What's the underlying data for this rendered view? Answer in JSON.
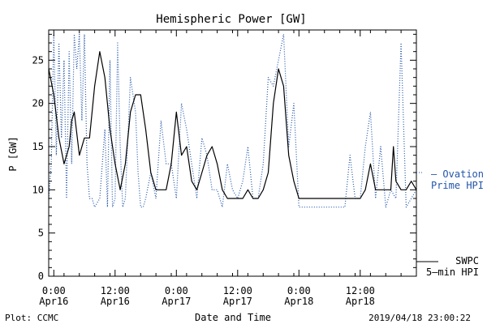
{
  "chart_data": {
    "type": "line",
    "title": "Hemispheric Power [GW]",
    "xlabel": "Date and Time",
    "ylabel": "P [GW]",
    "ylim": [
      0,
      28.5
    ],
    "xlim": [
      "2019-04-15T23:00",
      "2019-04-18T23:00"
    ],
    "y_ticks": [
      "0",
      "5",
      "10",
      "15",
      "20",
      "25"
    ],
    "x_ticks": [
      {
        "time": "2019-04-16T00:00",
        "line1": "0:00",
        "line2": "Apr16"
      },
      {
        "time": "2019-04-16T12:00",
        "line1": "12:00",
        "line2": "Apr16"
      },
      {
        "time": "2019-04-17T00:00",
        "line1": "0:00",
        "line2": "Apr17"
      },
      {
        "time": "2019-04-17T12:00",
        "line1": "12:00",
        "line2": "Apr17"
      },
      {
        "time": "2019-04-18T00:00",
        "line1": "0:00",
        "line2": "Apr18"
      },
      {
        "time": "2019-04-18T12:00",
        "line1": "12:00",
        "line2": "Apr18"
      }
    ],
    "legend_placement": "right",
    "series": [
      {
        "name": "SWPC 5-min HPI",
        "color": "#000000",
        "style": "solid",
        "x": [
          "2019-04-15T23:00",
          "2019-04-16T00:00",
          "2019-04-16T01:00",
          "2019-04-16T02:00",
          "2019-04-16T03:00",
          "2019-04-16T03:30",
          "2019-04-16T04:00",
          "2019-04-16T05:00",
          "2019-04-16T06:00",
          "2019-04-16T07:00",
          "2019-04-16T08:00",
          "2019-04-16T09:00",
          "2019-04-16T10:00",
          "2019-04-16T11:00",
          "2019-04-16T12:00",
          "2019-04-16T13:00",
          "2019-04-16T14:00",
          "2019-04-16T15:00",
          "2019-04-16T16:00",
          "2019-04-16T17:00",
          "2019-04-16T18:00",
          "2019-04-16T19:00",
          "2019-04-16T20:00",
          "2019-04-16T21:00",
          "2019-04-16T22:00",
          "2019-04-16T23:00",
          "2019-04-17T00:00",
          "2019-04-17T01:00",
          "2019-04-17T02:00",
          "2019-04-17T03:00",
          "2019-04-17T04:00",
          "2019-04-17T05:00",
          "2019-04-17T06:00",
          "2019-04-17T07:00",
          "2019-04-17T08:00",
          "2019-04-17T09:00",
          "2019-04-17T10:00",
          "2019-04-17T11:00",
          "2019-04-17T12:00",
          "2019-04-17T13:00",
          "2019-04-17T14:00",
          "2019-04-17T15:00",
          "2019-04-17T16:00",
          "2019-04-17T17:00",
          "2019-04-17T18:00",
          "2019-04-17T19:00",
          "2019-04-17T20:00",
          "2019-04-17T21:00",
          "2019-04-17T22:00",
          "2019-04-17T23:00",
          "2019-04-18T00:00",
          "2019-04-18T02:00",
          "2019-04-18T04:00",
          "2019-04-18T06:00",
          "2019-04-18T08:00",
          "2019-04-18T10:00",
          "2019-04-18T11:00",
          "2019-04-18T12:00",
          "2019-04-18T13:00",
          "2019-04-18T14:00",
          "2019-04-18T15:00",
          "2019-04-18T16:00",
          "2019-04-18T17:00",
          "2019-04-18T18:00",
          "2019-04-18T18:30",
          "2019-04-18T19:00",
          "2019-04-18T20:00",
          "2019-04-18T21:00",
          "2019-04-18T22:00",
          "2019-04-18T23:00"
        ],
        "y": [
          24,
          21,
          16,
          13,
          15,
          18,
          19,
          14,
          16,
          16,
          22,
          26,
          23,
          17,
          13,
          10,
          13,
          19,
          21,
          21,
          17,
          12,
          10,
          10,
          10,
          13,
          19,
          14,
          15,
          11,
          10,
          12,
          14,
          15,
          13,
          10,
          9,
          9,
          9,
          9,
          10,
          9,
          9,
          10,
          12,
          20,
          24,
          22,
          14,
          11,
          9,
          9,
          9,
          9,
          9,
          9,
          9,
          9,
          10,
          13,
          10,
          10,
          10,
          10,
          15,
          11,
          10,
          10,
          11,
          10
        ]
      },
      {
        "name": "Ovation Prime HPI",
        "color": "#2255aa",
        "style": "dotted",
        "x": [
          "2019-04-15T23:00",
          "2019-04-15T23:30",
          "2019-04-16T00:00",
          "2019-04-16T00:30",
          "2019-04-16T01:00",
          "2019-04-16T01:30",
          "2019-04-16T02:00",
          "2019-04-16T02:30",
          "2019-04-16T03:00",
          "2019-04-16T03:30",
          "2019-04-16T04:00",
          "2019-04-16T04:30",
          "2019-04-16T05:00",
          "2019-04-16T05:30",
          "2019-04-16T06:00",
          "2019-04-16T06:30",
          "2019-04-16T07:00",
          "2019-04-16T07:30",
          "2019-04-16T08:00",
          "2019-04-16T09:00",
          "2019-04-16T10:00",
          "2019-04-16T10:30",
          "2019-04-16T11:00",
          "2019-04-16T11:30",
          "2019-04-16T12:00",
          "2019-04-16T12:30",
          "2019-04-16T13:00",
          "2019-04-16T13:30",
          "2019-04-16T14:00",
          "2019-04-16T15:00",
          "2019-04-16T16:00",
          "2019-04-16T16:30",
          "2019-04-16T17:00",
          "2019-04-16T17:30",
          "2019-04-16T18:00",
          "2019-04-16T19:00",
          "2019-04-16T20:00",
          "2019-04-16T21:00",
          "2019-04-16T22:00",
          "2019-04-16T23:00",
          "2019-04-17T00:00",
          "2019-04-17T01:00",
          "2019-04-17T02:00",
          "2019-04-17T03:00",
          "2019-04-17T04:00",
          "2019-04-17T05:00",
          "2019-04-17T06:00",
          "2019-04-17T07:00",
          "2019-04-17T08:00",
          "2019-04-17T09:00",
          "2019-04-17T10:00",
          "2019-04-17T11:00",
          "2019-04-17T12:00",
          "2019-04-17T13:00",
          "2019-04-17T14:00",
          "2019-04-17T15:00",
          "2019-04-17T16:00",
          "2019-04-17T17:00",
          "2019-04-17T18:00",
          "2019-04-17T19:00",
          "2019-04-17T20:00",
          "2019-04-17T21:00",
          "2019-04-17T22:00",
          "2019-04-17T23:00",
          "2019-04-18T00:00",
          "2019-04-18T02:00",
          "2019-04-18T04:00",
          "2019-04-18T06:00",
          "2019-04-18T08:00",
          "2019-04-18T09:00",
          "2019-04-18T10:00",
          "2019-04-18T11:00",
          "2019-04-18T12:00",
          "2019-04-18T13:00",
          "2019-04-18T14:00",
          "2019-04-18T15:00",
          "2019-04-18T16:00",
          "2019-04-18T17:00",
          "2019-04-18T18:00",
          "2019-04-18T19:00",
          "2019-04-18T20:00",
          "2019-04-18T21:00",
          "2019-04-18T22:00",
          "2019-04-18T23:00"
        ],
        "y": [
          9,
          13,
          28,
          14,
          27,
          16,
          25,
          9,
          26,
          13,
          28,
          24,
          28,
          18,
          28,
          13,
          9,
          9,
          8,
          9,
          17,
          8,
          25,
          8,
          9,
          27,
          15,
          8,
          9,
          23,
          19,
          12,
          8,
          8,
          9,
          12,
          9,
          18,
          13,
          13,
          9,
          20,
          17,
          13,
          9,
          16,
          14,
          10,
          10,
          8,
          13,
          10,
          9,
          11,
          15,
          9,
          9,
          13,
          23,
          22,
          25,
          28,
          15,
          20,
          8,
          8,
          8,
          8,
          8,
          8,
          14,
          9,
          9,
          15,
          19,
          9,
          15,
          8,
          10,
          9,
          27,
          8,
          9,
          10
        ]
      }
    ]
  },
  "labels": {
    "title": "Hemispheric Power [GW]",
    "ylabel": "P [GW]",
    "xlabel": "Date and Time",
    "footer_left": "Plot: CCMC",
    "footer_right": "2019/04/18 23:00:22",
    "ovation_line1": "– Ovation",
    "ovation_line2": "Prime HPI",
    "swpc_line1": "SWPC",
    "swpc_line2": "5–min HPI"
  }
}
